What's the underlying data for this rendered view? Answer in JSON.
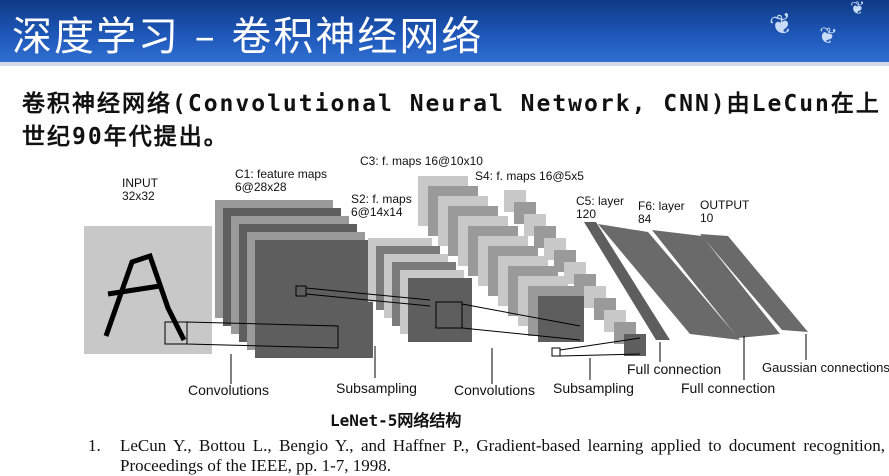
{
  "slide": {
    "title": "深度学习 – 卷积神经网络",
    "intro": "卷积神经网络(Convolutional Neural Network, CNN)由LeCun在上世纪90年代提出。"
  },
  "diagram": {
    "layers": {
      "input": {
        "name": "INPUT",
        "size": "32x32"
      },
      "c1": {
        "name": "C1: feature maps",
        "size": "6@28x28"
      },
      "s2": {
        "name": "S2: f. maps",
        "size": "6@14x14"
      },
      "c3": {
        "name": "C3: f. maps 16@10x10"
      },
      "s4": {
        "name": "S4: f. maps 16@5x5"
      },
      "c5": {
        "name": "C5: layer",
        "size": "120"
      },
      "f6": {
        "name": "F6: layer",
        "size": "84"
      },
      "output": {
        "name": "OUTPUT",
        "size": "10"
      }
    },
    "operations": {
      "convolutions_1": "Convolutions",
      "subsampling_1": "Subsampling",
      "convolutions_2": "Convolutions",
      "subsampling_2": "Subsampling",
      "full_connection_1": "Full connection",
      "full_connection_2": "Full connection",
      "gaussian": "Gaussian connections"
    },
    "caption": "LeNet-5网络结构"
  },
  "reference": {
    "number": "1.",
    "text": "LeCun Y., Bottou L., Bengio Y., and Haffner P., Gradient-based learning applied to document recognition, Proceedings of the IEEE, pp. 1-7, 1998."
  },
  "colors": {
    "header_top": "#0d3a86",
    "header_bottom": "#2f6fd0",
    "map_dark": "#5e5e5e",
    "map_mid": "#9a9a9a",
    "map_light": "#c8c8c8"
  },
  "icons": [
    "butterfly-icon"
  ]
}
